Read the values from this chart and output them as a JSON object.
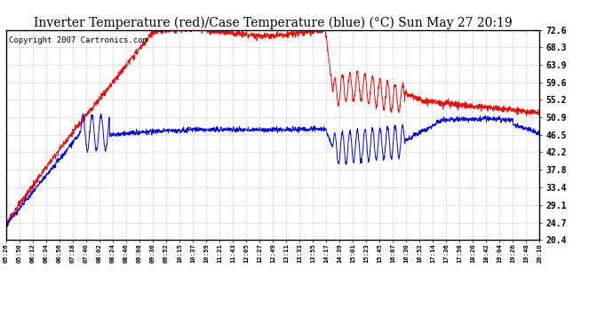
{
  "title": "Inverter Temperature (red)/Case Temperature (blue) (°C) Sun May 27 20:19",
  "copyright": "Copyright 2007 Cartronics.com",
  "ylim": [
    20.4,
    72.6
  ],
  "yticks": [
    20.4,
    24.7,
    29.1,
    33.4,
    37.8,
    42.2,
    46.5,
    50.9,
    55.2,
    59.6,
    63.9,
    68.3,
    72.6
  ],
  "bg_color": "#ffffff",
  "plot_bg_color": "#ffffff",
  "grid_color": "#bbbbbb",
  "red_color": "#ff0000",
  "blue_color": "#0000ff",
  "title_fontsize": 10,
  "copyright_fontsize": 6.5,
  "time_labels": [
    "05:26",
    "05:50",
    "06:12",
    "06:34",
    "06:56",
    "07:18",
    "07:40",
    "08:02",
    "08:24",
    "08:46",
    "09:08",
    "09:30",
    "09:52",
    "10:15",
    "10:37",
    "10:59",
    "11:21",
    "11:43",
    "12:05",
    "12:27",
    "12:49",
    "13:11",
    "13:33",
    "13:55",
    "14:17",
    "14:39",
    "15:01",
    "15:23",
    "15:45",
    "16:07",
    "16:30",
    "16:52",
    "17:14",
    "17:36",
    "17:58",
    "18:20",
    "18:42",
    "19:04",
    "19:26",
    "19:48",
    "20:10"
  ]
}
